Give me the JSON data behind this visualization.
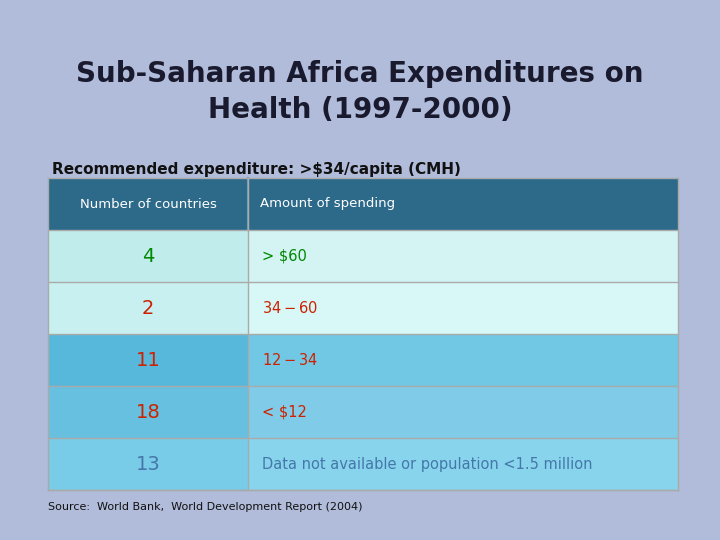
{
  "title": "Sub-Saharan Africa Expenditures on\nHealth (1997-2000)",
  "subtitle": "Recommended expenditure: >$34/capita (CMH)",
  "source": "Source:  World Bank,  World Development Report (2004)",
  "background_color": "#b0bcda",
  "table_header_bg": "#2d6a8a",
  "table_header_text": "#ffffff",
  "table_header_col1": "Number of countries",
  "table_header_col2": "Amount of spending",
  "rows": [
    {
      "count": "4",
      "amount": "> $60",
      "count_color": "#008800",
      "amount_color": "#008800",
      "row_bg_left": "#c0ecec",
      "row_bg_right": "#d4f4f4"
    },
    {
      "count": "2",
      "amount": "$34 - $60",
      "count_color": "#cc2200",
      "amount_color": "#cc2200",
      "row_bg_left": "#c8f0f0",
      "row_bg_right": "#d8f8f8"
    },
    {
      "count": "11",
      "amount": "$12 - $34",
      "count_color": "#cc2200",
      "amount_color": "#cc2200",
      "row_bg_left": "#58b8dc",
      "row_bg_right": "#70c8e4"
    },
    {
      "count": "18",
      "amount": "< $12",
      "count_color": "#cc2200",
      "amount_color": "#cc2200",
      "row_bg_left": "#68c0e0",
      "row_bg_right": "#80cce8"
    },
    {
      "count": "13",
      "amount": "Data not available or population <1.5 million",
      "count_color": "#4477aa",
      "amount_color": "#4477aa",
      "row_bg_left": "#78cce8",
      "row_bg_right": "#88d4ec"
    }
  ]
}
